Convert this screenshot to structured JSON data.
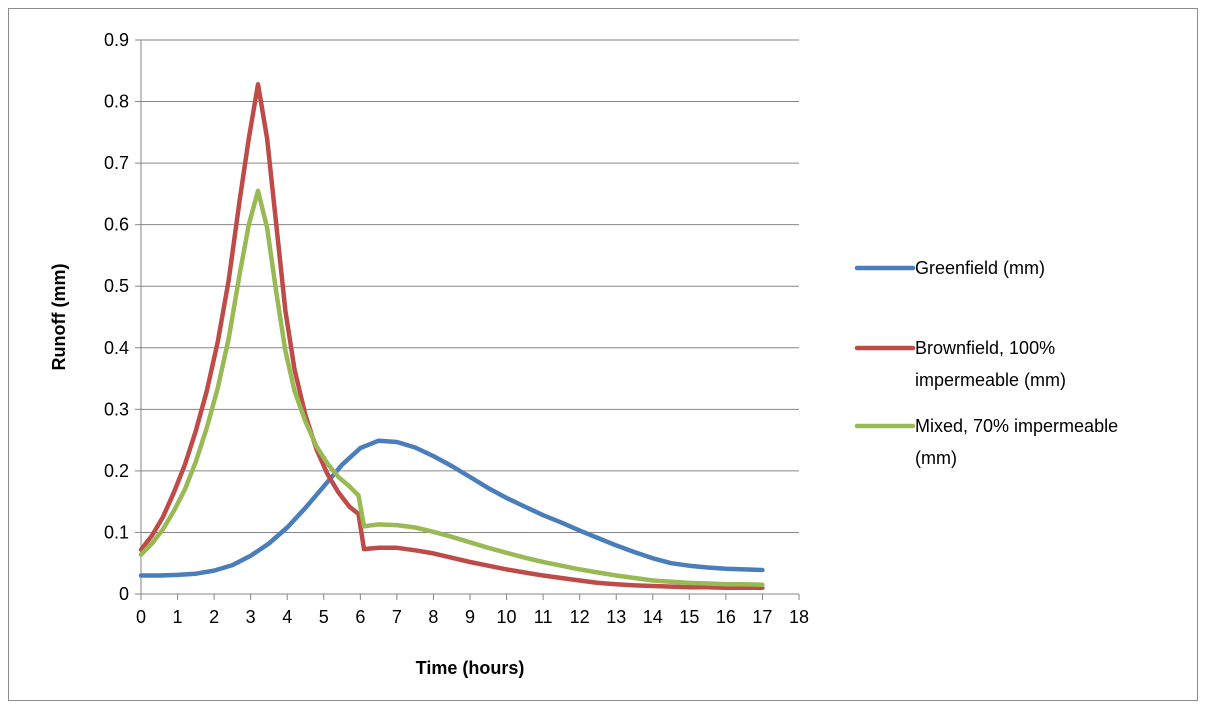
{
  "chart_data": {
    "type": "line",
    "title": "",
    "xlabel": "Time (hours)",
    "ylabel": "Runoff (mm)",
    "xlim": [
      0,
      18
    ],
    "ylim": [
      0,
      0.9
    ],
    "x_ticks": [
      "0",
      "1",
      "2",
      "3",
      "4",
      "5",
      "6",
      "7",
      "8",
      "9",
      "10",
      "11",
      "12",
      "13",
      "14",
      "15",
      "16",
      "17",
      "18"
    ],
    "y_ticks": [
      "0",
      "0.1",
      "0.2",
      "0.3",
      "0.4",
      "0.5",
      "0.6",
      "0.7",
      "0.8",
      "0.9"
    ],
    "grid": "horizontal",
    "legend_position": "right",
    "series": [
      {
        "name": "Greenfield (mm)",
        "color": "#4a7ebb",
        "points": [
          [
            0,
            0.03
          ],
          [
            0.5,
            0.03
          ],
          [
            1,
            0.031
          ],
          [
            1.5,
            0.033
          ],
          [
            2,
            0.038
          ],
          [
            2.5,
            0.047
          ],
          [
            3,
            0.062
          ],
          [
            3.5,
            0.082
          ],
          [
            4,
            0.108
          ],
          [
            4.5,
            0.14
          ],
          [
            5,
            0.175
          ],
          [
            5.5,
            0.21
          ],
          [
            6,
            0.237
          ],
          [
            6.5,
            0.249
          ],
          [
            7,
            0.247
          ],
          [
            7.5,
            0.238
          ],
          [
            8,
            0.224
          ],
          [
            8.5,
            0.208
          ],
          [
            9,
            0.19
          ],
          [
            9.5,
            0.172
          ],
          [
            10,
            0.156
          ],
          [
            10.5,
            0.142
          ],
          [
            11,
            0.128
          ],
          [
            11.5,
            0.116
          ],
          [
            12,
            0.103
          ],
          [
            12.5,
            0.091
          ],
          [
            13,
            0.079
          ],
          [
            13.5,
            0.068
          ],
          [
            14,
            0.058
          ],
          [
            14.5,
            0.05
          ],
          [
            15,
            0.046
          ],
          [
            15.5,
            0.043
          ],
          [
            16,
            0.041
          ],
          [
            16.5,
            0.04
          ],
          [
            17,
            0.039
          ]
        ]
      },
      {
        "name": "Brownfield, 100% impermeable  (mm)",
        "color": "#be4b48",
        "points": [
          [
            0,
            0.072
          ],
          [
            0.3,
            0.095
          ],
          [
            0.6,
            0.125
          ],
          [
            0.9,
            0.165
          ],
          [
            1.2,
            0.21
          ],
          [
            1.5,
            0.265
          ],
          [
            1.8,
            0.33
          ],
          [
            2.1,
            0.41
          ],
          [
            2.4,
            0.51
          ],
          [
            2.7,
            0.64
          ],
          [
            2.95,
            0.74
          ],
          [
            3.2,
            0.828
          ],
          [
            3.45,
            0.74
          ],
          [
            3.7,
            0.6
          ],
          [
            3.95,
            0.46
          ],
          [
            4.2,
            0.365
          ],
          [
            4.5,
            0.29
          ],
          [
            4.8,
            0.235
          ],
          [
            5.1,
            0.195
          ],
          [
            5.4,
            0.165
          ],
          [
            5.7,
            0.142
          ],
          [
            5.95,
            0.13
          ],
          [
            6.1,
            0.073
          ],
          [
            6.5,
            0.075
          ],
          [
            7,
            0.075
          ],
          [
            7.5,
            0.071
          ],
          [
            8,
            0.066
          ],
          [
            8.5,
            0.059
          ],
          [
            9,
            0.052
          ],
          [
            9.5,
            0.046
          ],
          [
            10,
            0.04
          ],
          [
            10.5,
            0.035
          ],
          [
            11,
            0.03
          ],
          [
            11.5,
            0.026
          ],
          [
            12,
            0.022
          ],
          [
            12.5,
            0.018
          ],
          [
            13,
            0.016
          ],
          [
            13.5,
            0.014
          ],
          [
            14,
            0.013
          ],
          [
            14.5,
            0.012
          ],
          [
            15,
            0.011
          ],
          [
            15.5,
            0.011
          ],
          [
            16,
            0.01
          ],
          [
            16.5,
            0.01
          ],
          [
            17,
            0.01
          ]
        ]
      },
      {
        "name": "Mixed, 70% impermeable (mm)",
        "color": "#98b954",
        "points": [
          [
            0,
            0.064
          ],
          [
            0.3,
            0.082
          ],
          [
            0.6,
            0.105
          ],
          [
            0.9,
            0.135
          ],
          [
            1.2,
            0.17
          ],
          [
            1.5,
            0.215
          ],
          [
            1.8,
            0.27
          ],
          [
            2.1,
            0.335
          ],
          [
            2.4,
            0.415
          ],
          [
            2.7,
            0.52
          ],
          [
            2.95,
            0.6
          ],
          [
            3.2,
            0.655
          ],
          [
            3.45,
            0.595
          ],
          [
            3.7,
            0.49
          ],
          [
            3.95,
            0.395
          ],
          [
            4.2,
            0.33
          ],
          [
            4.5,
            0.28
          ],
          [
            4.8,
            0.24
          ],
          [
            5.1,
            0.212
          ],
          [
            5.4,
            0.19
          ],
          [
            5.7,
            0.175
          ],
          [
            5.95,
            0.16
          ],
          [
            6.1,
            0.11
          ],
          [
            6.5,
            0.113
          ],
          [
            7,
            0.112
          ],
          [
            7.5,
            0.108
          ],
          [
            8,
            0.101
          ],
          [
            8.5,
            0.093
          ],
          [
            9,
            0.084
          ],
          [
            9.5,
            0.075
          ],
          [
            10,
            0.067
          ],
          [
            10.5,
            0.059
          ],
          [
            11,
            0.052
          ],
          [
            11.5,
            0.046
          ],
          [
            12,
            0.04
          ],
          [
            12.5,
            0.035
          ],
          [
            13,
            0.03
          ],
          [
            13.5,
            0.026
          ],
          [
            14,
            0.022
          ],
          [
            14.5,
            0.02
          ],
          [
            15,
            0.018
          ],
          [
            15.5,
            0.017
          ],
          [
            16,
            0.016
          ],
          [
            16.5,
            0.016
          ],
          [
            17,
            0.015
          ]
        ]
      }
    ],
    "legend": [
      {
        "lines": [
          "Greenfield (mm)"
        ]
      },
      {
        "lines": [
          "Brownfield, 100%",
          "impermeable  (mm)"
        ]
      },
      {
        "lines": [
          "Mixed, 70% impermeable",
          "(mm)"
        ]
      }
    ]
  }
}
